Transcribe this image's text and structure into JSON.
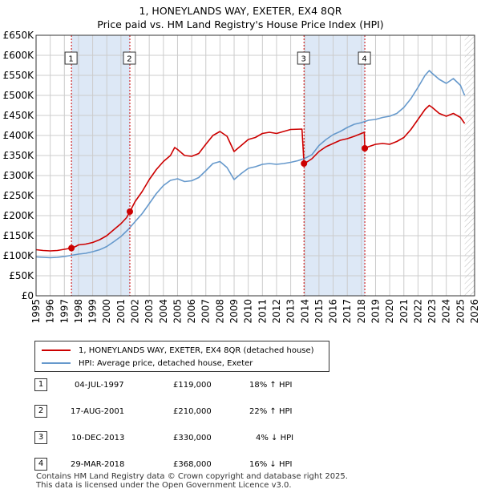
{
  "title": {
    "line1": "1, HONEYLANDS WAY, EXETER, EX4 8QR",
    "line2": "Price paid vs. HM Land Registry's House Price Index (HPI)"
  },
  "colors": {
    "property": "#cc0000",
    "hpi": "#6699cc",
    "shade": "#dde8f6",
    "marker_line": "#cc0000",
    "grid": "#cccccc"
  },
  "chart_data": {
    "type": "line",
    "xlim": [
      1995,
      2026
    ],
    "ylim": [
      0,
      650000
    ],
    "x_ticks": [
      "1995",
      "1996",
      "1997",
      "1998",
      "1999",
      "2000",
      "2001",
      "2002",
      "2003",
      "2004",
      "2005",
      "2006",
      "2007",
      "2008",
      "2009",
      "2010",
      "2011",
      "2012",
      "2013",
      "2014",
      "2015",
      "2016",
      "2017",
      "2018",
      "2019",
      "2020",
      "2021",
      "2022",
      "2023",
      "2024",
      "2025",
      "2026"
    ],
    "y_ticks": [
      {
        "value": 0,
        "label": "£0"
      },
      {
        "value": 50000,
        "label": "£50K"
      },
      {
        "value": 100000,
        "label": "£100K"
      },
      {
        "value": 150000,
        "label": "£150K"
      },
      {
        "value": 200000,
        "label": "£200K"
      },
      {
        "value": 250000,
        "label": "£250K"
      },
      {
        "value": 300000,
        "label": "£300K"
      },
      {
        "value": 350000,
        "label": "£350K"
      },
      {
        "value": 400000,
        "label": "£400K"
      },
      {
        "value": 450000,
        "label": "£450K"
      },
      {
        "value": 500000,
        "label": "£500K"
      },
      {
        "value": 550000,
        "label": "£550K"
      },
      {
        "value": 600000,
        "label": "£600K"
      },
      {
        "value": 650000,
        "label": "£650K"
      }
    ],
    "shaded_ranges": [
      [
        1997.5,
        2001.63
      ],
      [
        2013.94,
        2018.24
      ]
    ],
    "future_hatch_start": 2025.3,
    "series": [
      {
        "name": "1, HONEYLANDS WAY, EXETER, EX4 8QR (detached house)",
        "key": "property",
        "points": [
          [
            1995.0,
            115000
          ],
          [
            1995.5,
            113000
          ],
          [
            1996.0,
            112000
          ],
          [
            1996.5,
            113000
          ],
          [
            1997.0,
            116000
          ],
          [
            1997.5,
            119000
          ],
          [
            1997.8,
            123000
          ],
          [
            1998.0,
            127000
          ],
          [
            1998.5,
            129000
          ],
          [
            1999.0,
            133000
          ],
          [
            1999.5,
            140000
          ],
          [
            2000.0,
            150000
          ],
          [
            2000.5,
            165000
          ],
          [
            2001.0,
            180000
          ],
          [
            2001.4,
            195000
          ],
          [
            2001.63,
            210000
          ],
          [
            2002.0,
            235000
          ],
          [
            2002.5,
            260000
          ],
          [
            2003.0,
            290000
          ],
          [
            2003.5,
            315000
          ],
          [
            2004.0,
            335000
          ],
          [
            2004.5,
            350000
          ],
          [
            2004.8,
            370000
          ],
          [
            2005.0,
            365000
          ],
          [
            2005.5,
            350000
          ],
          [
            2006.0,
            348000
          ],
          [
            2006.5,
            355000
          ],
          [
            2007.0,
            378000
          ],
          [
            2007.5,
            400000
          ],
          [
            2008.0,
            410000
          ],
          [
            2008.5,
            398000
          ],
          [
            2009.0,
            360000
          ],
          [
            2009.5,
            375000
          ],
          [
            2010.0,
            390000
          ],
          [
            2010.5,
            395000
          ],
          [
            2011.0,
            405000
          ],
          [
            2011.5,
            408000
          ],
          [
            2012.0,
            405000
          ],
          [
            2012.5,
            410000
          ],
          [
            2013.0,
            415000
          ],
          [
            2013.8,
            416000
          ],
          [
            2013.94,
            330000
          ],
          [
            2014.2,
            335000
          ],
          [
            2014.5,
            342000
          ],
          [
            2015.0,
            360000
          ],
          [
            2015.5,
            372000
          ],
          [
            2016.0,
            380000
          ],
          [
            2016.5,
            388000
          ],
          [
            2017.0,
            392000
          ],
          [
            2017.5,
            398000
          ],
          [
            2018.0,
            405000
          ],
          [
            2018.2,
            408000
          ],
          [
            2018.24,
            368000
          ],
          [
            2018.5,
            372000
          ],
          [
            2019.0,
            378000
          ],
          [
            2019.5,
            380000
          ],
          [
            2020.0,
            378000
          ],
          [
            2020.5,
            385000
          ],
          [
            2021.0,
            395000
          ],
          [
            2021.5,
            415000
          ],
          [
            2022.0,
            440000
          ],
          [
            2022.5,
            465000
          ],
          [
            2022.8,
            475000
          ],
          [
            2023.0,
            470000
          ],
          [
            2023.5,
            455000
          ],
          [
            2024.0,
            448000
          ],
          [
            2024.5,
            455000
          ],
          [
            2025.0,
            445000
          ],
          [
            2025.3,
            430000
          ]
        ]
      },
      {
        "name": "HPI: Average price, detached house, Exeter",
        "key": "hpi",
        "points": [
          [
            1995.0,
            97000
          ],
          [
            1995.5,
            96000
          ],
          [
            1996.0,
            95000
          ],
          [
            1996.5,
            96000
          ],
          [
            1997.0,
            98000
          ],
          [
            1997.5,
            101000
          ],
          [
            1998.0,
            104000
          ],
          [
            1998.5,
            106000
          ],
          [
            1999.0,
            110000
          ],
          [
            1999.5,
            115000
          ],
          [
            2000.0,
            123000
          ],
          [
            2000.5,
            135000
          ],
          [
            2001.0,
            148000
          ],
          [
            2001.5,
            165000
          ],
          [
            2002.0,
            185000
          ],
          [
            2002.5,
            205000
          ],
          [
            2003.0,
            230000
          ],
          [
            2003.5,
            255000
          ],
          [
            2004.0,
            275000
          ],
          [
            2004.5,
            288000
          ],
          [
            2005.0,
            292000
          ],
          [
            2005.5,
            285000
          ],
          [
            2006.0,
            287000
          ],
          [
            2006.5,
            295000
          ],
          [
            2007.0,
            312000
          ],
          [
            2007.5,
            330000
          ],
          [
            2008.0,
            335000
          ],
          [
            2008.5,
            320000
          ],
          [
            2009.0,
            290000
          ],
          [
            2009.5,
            305000
          ],
          [
            2010.0,
            318000
          ],
          [
            2010.5,
            322000
          ],
          [
            2011.0,
            328000
          ],
          [
            2011.5,
            330000
          ],
          [
            2012.0,
            328000
          ],
          [
            2012.5,
            330000
          ],
          [
            2013.0,
            333000
          ],
          [
            2013.5,
            337000
          ],
          [
            2014.0,
            343000
          ],
          [
            2014.5,
            352000
          ],
          [
            2015.0,
            375000
          ],
          [
            2015.5,
            390000
          ],
          [
            2016.0,
            402000
          ],
          [
            2016.5,
            410000
          ],
          [
            2017.0,
            420000
          ],
          [
            2017.5,
            428000
          ],
          [
            2018.0,
            432000
          ],
          [
            2018.5,
            438000
          ],
          [
            2019.0,
            440000
          ],
          [
            2019.5,
            445000
          ],
          [
            2020.0,
            448000
          ],
          [
            2020.5,
            455000
          ],
          [
            2021.0,
            470000
          ],
          [
            2021.5,
            492000
          ],
          [
            2022.0,
            520000
          ],
          [
            2022.5,
            550000
          ],
          [
            2022.8,
            562000
          ],
          [
            2023.0,
            555000
          ],
          [
            2023.5,
            540000
          ],
          [
            2024.0,
            530000
          ],
          [
            2024.5,
            542000
          ],
          [
            2025.0,
            525000
          ],
          [
            2025.3,
            500000
          ]
        ]
      }
    ],
    "sales": [
      {
        "n": "1",
        "x": 1997.5,
        "price": 119000
      },
      {
        "n": "2",
        "x": 2001.63,
        "price": 210000
      },
      {
        "n": "3",
        "x": 2013.94,
        "price": 330000
      },
      {
        "n": "4",
        "x": 2018.24,
        "price": 368000
      }
    ]
  },
  "legend": {
    "property_label": "1, HONEYLANDS WAY, EXETER, EX4 8QR (detached house)",
    "hpi_label": "HPI: Average price, detached house, Exeter"
  },
  "sales_table": [
    {
      "n": "1",
      "date": "04-JUL-1997",
      "price": "£119,000",
      "hpi": "18% ↑ HPI"
    },
    {
      "n": "2",
      "date": "17-AUG-2001",
      "price": "£210,000",
      "hpi": "22% ↑ HPI"
    },
    {
      "n": "3",
      "date": "10-DEC-2013",
      "price": "£330,000",
      "hpi": "4% ↓ HPI"
    },
    {
      "n": "4",
      "date": "29-MAR-2018",
      "price": "£368,000",
      "hpi": "16% ↓ HPI"
    }
  ],
  "footer": {
    "line1": "Contains HM Land Registry data © Crown copyright and database right 2025.",
    "line2": "This data is licensed under the Open Government Licence v3.0."
  }
}
